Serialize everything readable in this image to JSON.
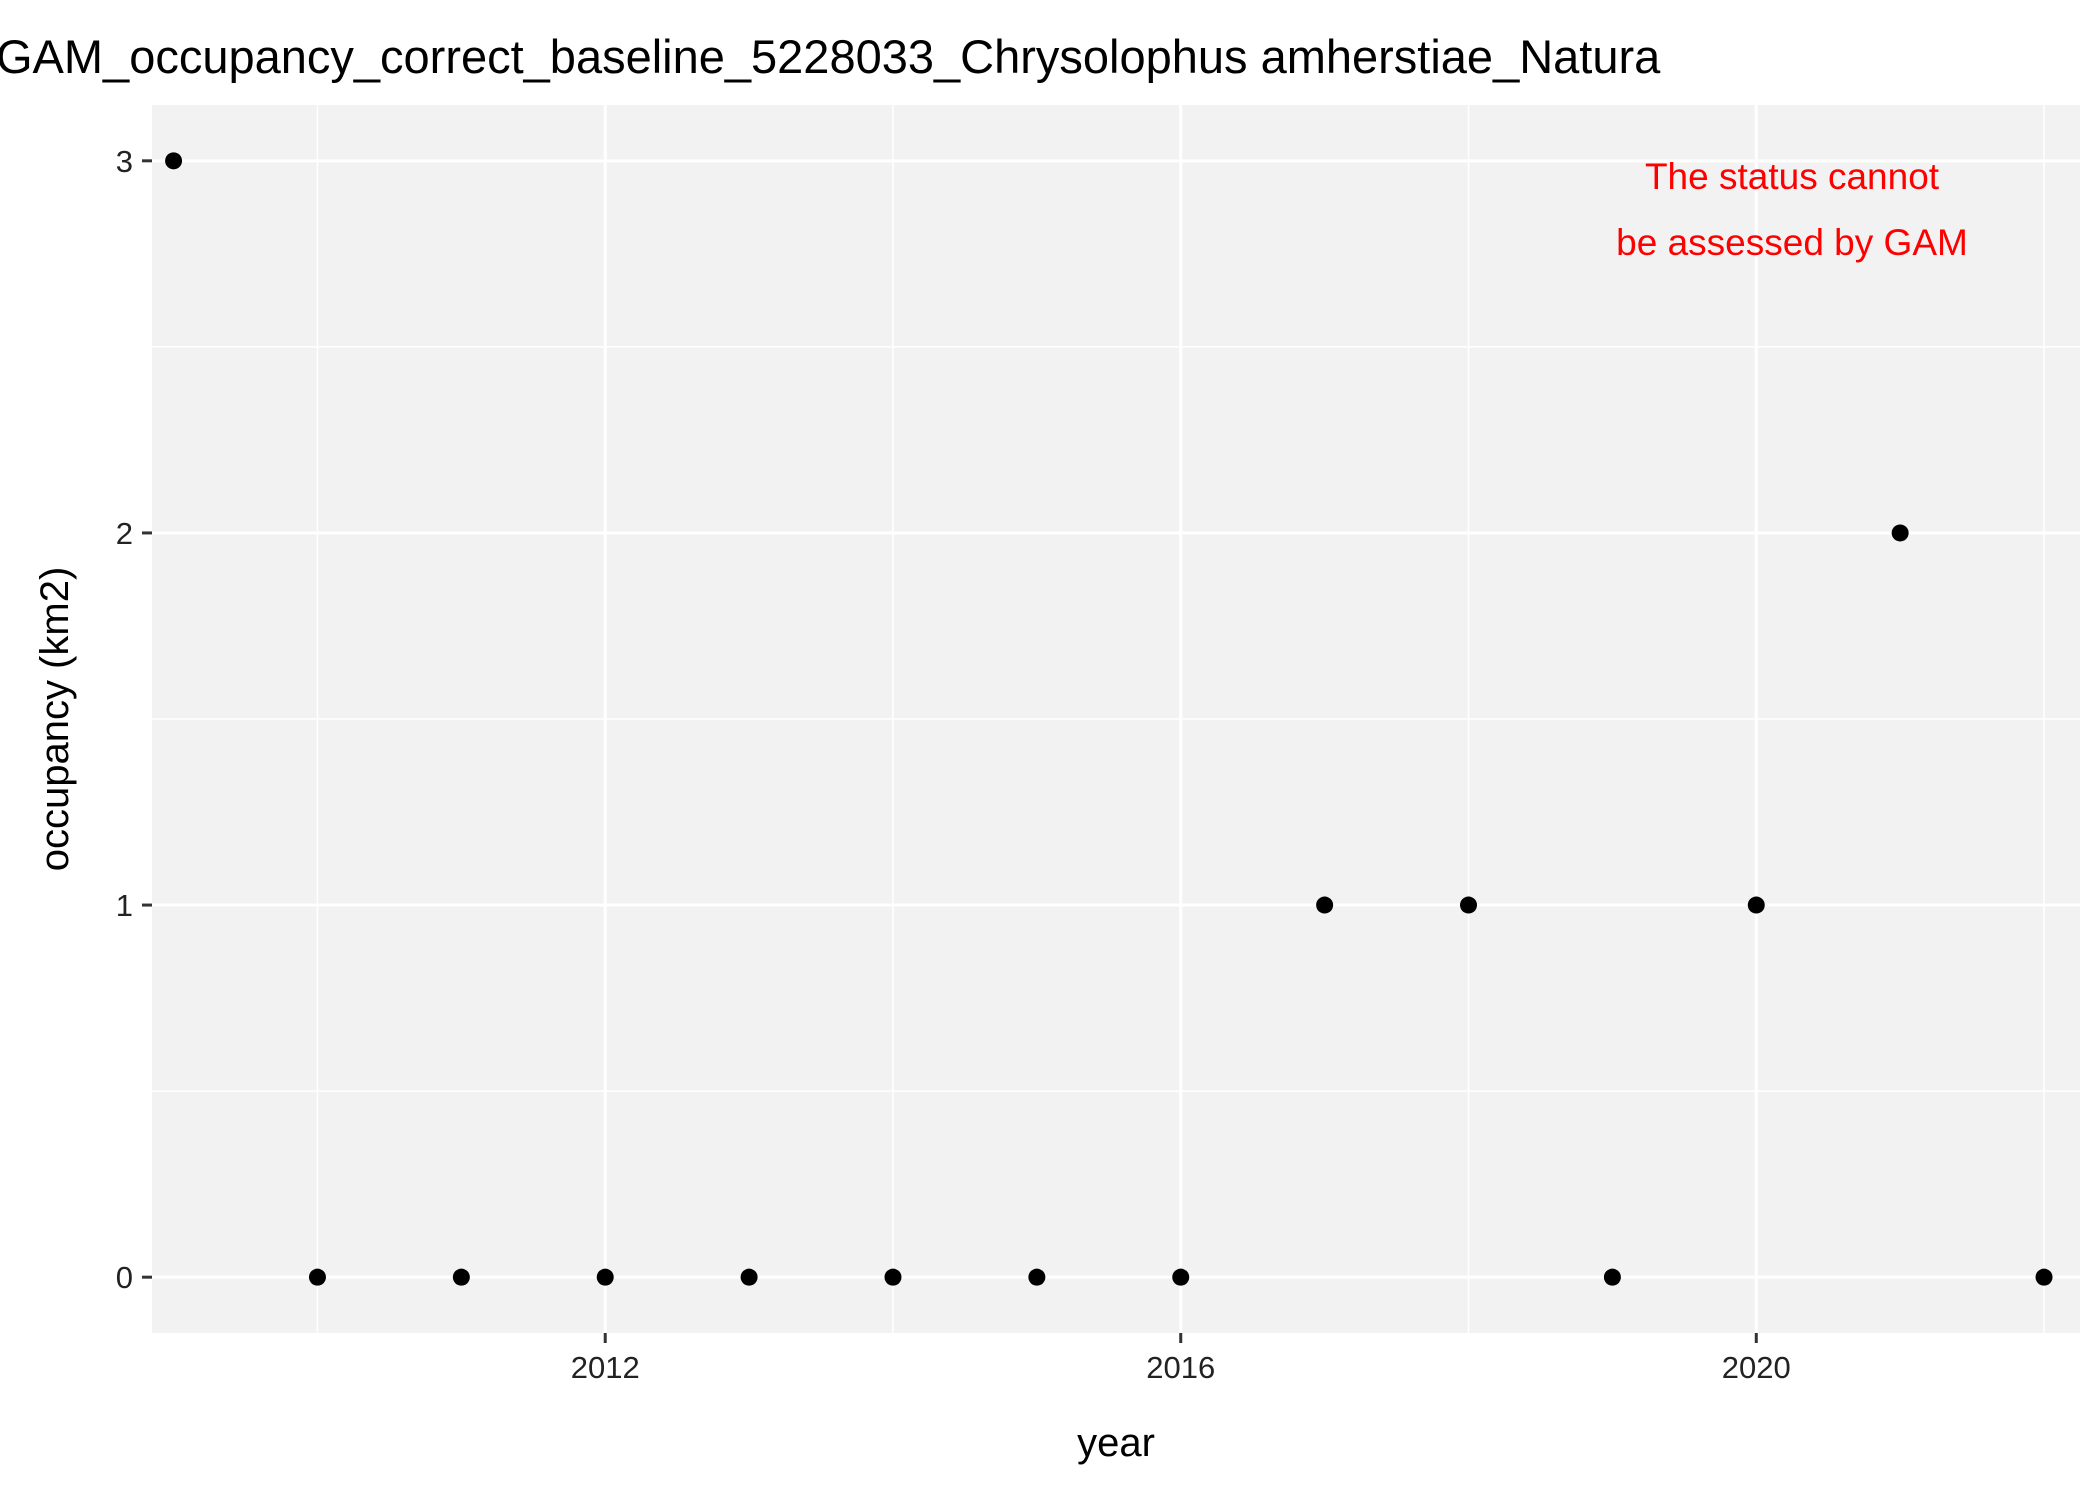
{
  "chart_data": {
    "type": "scatter",
    "title": "GAM_occupancy_correct_baseline_5228033_Chrysolophus amherstiae_Natura",
    "xlabel": "year",
    "ylabel": "occupancy (km2)",
    "xlim": [
      2008.85,
      2022.25
    ],
    "ylim": [
      -0.15,
      3.15
    ],
    "x_ticks": [
      {
        "value": 2012,
        "label": "2012"
      },
      {
        "value": 2016,
        "label": "2016"
      },
      {
        "value": 2020,
        "label": "2020"
      }
    ],
    "x_minor_ticks": [
      2010,
      2014,
      2018,
      2022
    ],
    "y_ticks": [
      {
        "value": 0,
        "label": "0"
      },
      {
        "value": 1,
        "label": "1"
      },
      {
        "value": 2,
        "label": "2"
      },
      {
        "value": 3,
        "label": "3"
      }
    ],
    "y_minor_ticks": [
      0.5,
      1.5,
      2.5
    ],
    "grid": true,
    "legend": "none",
    "points": [
      {
        "x": 2009,
        "y": 3
      },
      {
        "x": 2010,
        "y": 0
      },
      {
        "x": 2011,
        "y": 0
      },
      {
        "x": 2012,
        "y": 0
      },
      {
        "x": 2013,
        "y": 0
      },
      {
        "x": 2014,
        "y": 0
      },
      {
        "x": 2015,
        "y": 0
      },
      {
        "x": 2016,
        "y": 0
      },
      {
        "x": 2017,
        "y": 1
      },
      {
        "x": 2018,
        "y": 1
      },
      {
        "x": 2019,
        "y": 0
      },
      {
        "x": 2020,
        "y": 1
      },
      {
        "x": 2021,
        "y": 2
      },
      {
        "x": 2022,
        "y": 0
      }
    ],
    "annotation": {
      "lines": [
        "The status cannot",
        "be assessed by GAM"
      ],
      "color": "#ff0000",
      "placement": "top-right"
    },
    "colors": {
      "panel_background": "#f2f2f2",
      "grid": "#ffffff",
      "point": "#000000",
      "tick": "#333333"
    }
  }
}
